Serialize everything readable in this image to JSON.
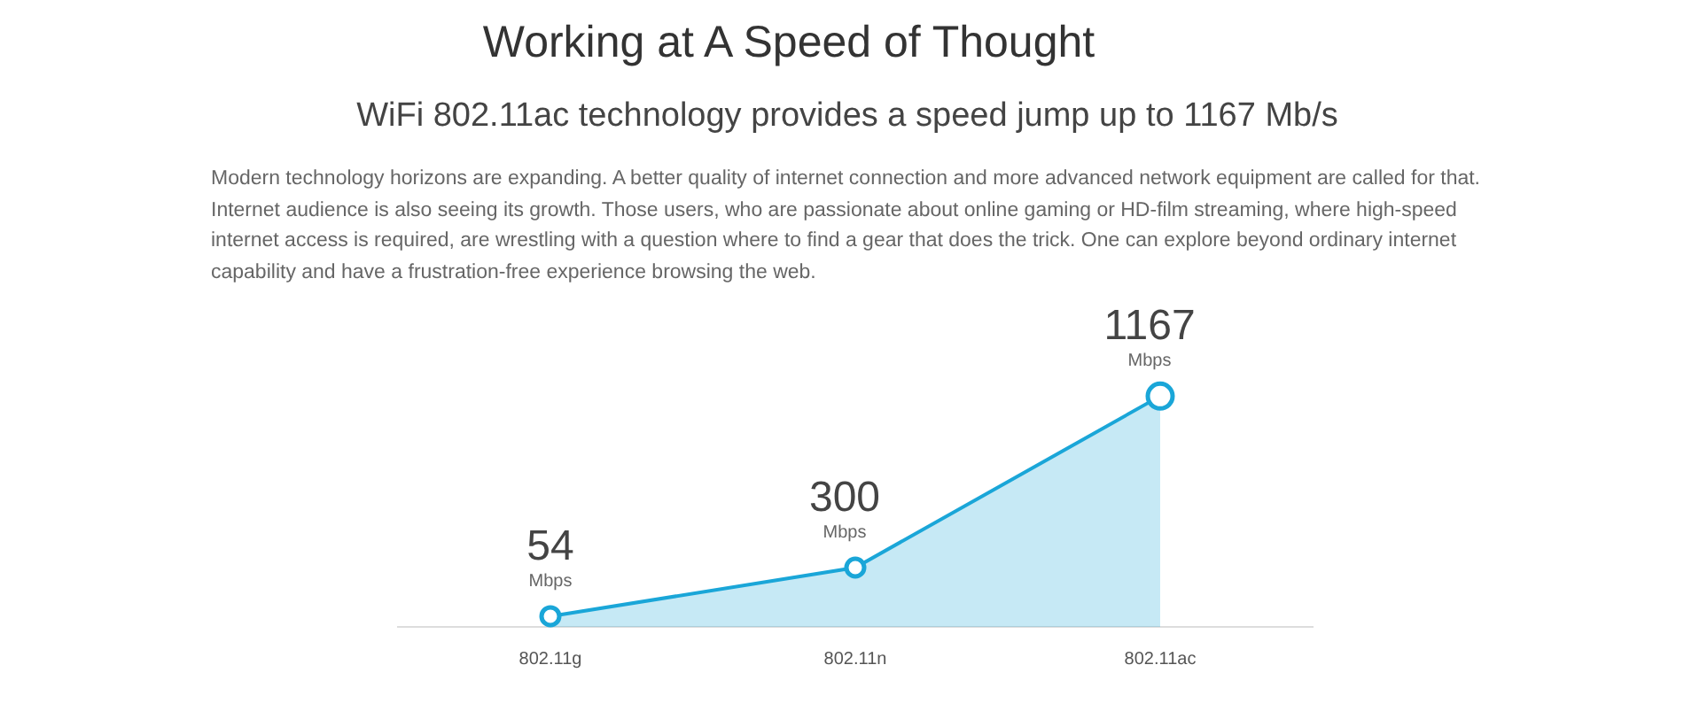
{
  "chart_data": {
    "type": "area",
    "title": "Working at A Speed of Thought",
    "subtitle": "WiFi 802.11ac technology provides a speed jump up to 1167 Mb/s",
    "annotations": [
      {
        "text": "Mbps",
        "x": "802.11g",
        "y": 54
      },
      {
        "text": "Mbps",
        "x": "802.11n",
        "y": 300
      },
      {
        "text": "Mbps",
        "x": "802.11ac",
        "y": 1167
      },
      "Modern technology horizons are expanding. A better quality of internet connection and more advanced network equipment are called for that. Internet audience is also seeing its growth. Those users, who are passionate about online gaming or HD-film streaming, where high-speed internet access is required, are wrestling with a question where to find a gear that does the trick. One can explore beyond ordinary internet capability and have a frustration-free experience browsing the web."
    ],
    "categories": [
      "802.11g",
      "802.11n",
      "802.11ac"
    ],
    "series": [
      {
        "color": "#1aa6d8",
        "values": [
          54,
          300,
          1167
        ]
      }
    ],
    "data_labels": true,
    "marker": "circle",
    "grid": false,
    "legend": false
  }
}
